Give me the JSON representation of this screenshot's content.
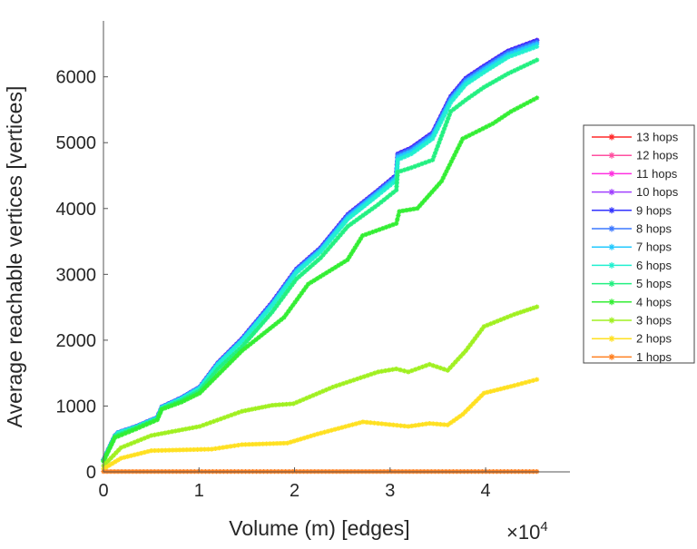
{
  "chart_data": {
    "type": "line",
    "title": "",
    "xlabel": "Volume (m) [edges]",
    "ylabel": "Average reachable vertices [vertices]",
    "x_exponent_label": "×10",
    "x_exponent": "4",
    "xlim": [
      0,
      47400
    ],
    "ylim": [
      0,
      6850
    ],
    "xticks": [
      0,
      10000,
      20000,
      30000,
      40000
    ],
    "xtick_labels": [
      "0",
      "1",
      "2",
      "3",
      "4"
    ],
    "yticks": [
      0,
      1000,
      2000,
      3000,
      4000,
      5000,
      6000
    ],
    "ytick_labels": [
      "0",
      "1000",
      "2000",
      "3000",
      "4000",
      "5000",
      "6000"
    ],
    "grid": false,
    "legend_position": "outside-right",
    "series": [
      {
        "name": "13 hops",
        "color": "#ff2a2a",
        "x": [
          0,
          1200,
          1520,
          3400,
          5630,
          6110,
          8170,
          10070,
          11970,
          14500,
          17670,
          20200,
          22730,
          25580,
          28750,
          30650,
          30800,
          32230,
          34450,
          36350,
          37930,
          39830,
          42360,
          45370
        ],
        "y": [
          184,
          552,
          598,
          690,
          828,
          989,
          1127,
          1288,
          1656,
          2024,
          2576,
          3082,
          3404,
          3910,
          4278,
          4508,
          4830,
          4922,
          5152,
          5704,
          5980,
          6164,
          6394,
          6555
        ]
      },
      {
        "name": "12 hops",
        "color": "#ff4fa0",
        "x": [
          0,
          1200,
          1520,
          3400,
          5630,
          6110,
          8170,
          10070,
          11970,
          14500,
          17670,
          20200,
          22730,
          25580,
          28750,
          30650,
          30800,
          32230,
          34450,
          36350,
          37930,
          39830,
          42360,
          45370
        ],
        "y": [
          184,
          552,
          598,
          690,
          828,
          989,
          1127,
          1288,
          1656,
          2024,
          2576,
          3082,
          3404,
          3910,
          4278,
          4508,
          4830,
          4922,
          5152,
          5704,
          5980,
          6164,
          6394,
          6555
        ]
      },
      {
        "name": "11 hops",
        "color": "#ff30e0",
        "x": [
          0,
          1200,
          1520,
          3400,
          5630,
          6110,
          8170,
          10070,
          11970,
          14500,
          17670,
          20200,
          22730,
          25580,
          28750,
          30650,
          30800,
          32230,
          34450,
          36350,
          37930,
          39830,
          42360,
          45370
        ],
        "y": [
          184,
          552,
          598,
          690,
          828,
          989,
          1127,
          1288,
          1656,
          2024,
          2576,
          3082,
          3404,
          3910,
          4278,
          4508,
          4830,
          4922,
          5152,
          5704,
          5980,
          6164,
          6394,
          6555
        ]
      },
      {
        "name": "10 hops",
        "color": "#a040ff",
        "x": [
          0,
          1200,
          1520,
          3400,
          5630,
          6110,
          8170,
          10070,
          11970,
          14500,
          17670,
          20200,
          22730,
          25580,
          28750,
          30650,
          30800,
          32230,
          34450,
          36350,
          37930,
          39830,
          42360,
          45370
        ],
        "y": [
          184,
          552,
          598,
          690,
          828,
          989,
          1127,
          1288,
          1656,
          2024,
          2576,
          3082,
          3404,
          3910,
          4278,
          4508,
          4830,
          4922,
          5152,
          5704,
          5980,
          6164,
          6394,
          6555
        ]
      },
      {
        "name": "9 hops",
        "color": "#3232ff",
        "x": [
          0,
          1200,
          1520,
          3400,
          5630,
          6110,
          8170,
          10070,
          11970,
          14500,
          17670,
          20200,
          22730,
          25580,
          28750,
          30650,
          30800,
          32230,
          34450,
          36350,
          37930,
          39830,
          42360,
          45370
        ],
        "y": [
          184,
          552,
          598,
          690,
          828,
          989,
          1127,
          1288,
          1656,
          2024,
          2576,
          3082,
          3404,
          3910,
          4278,
          4508,
          4830,
          4922,
          5152,
          5704,
          5980,
          6164,
          6394,
          6555
        ]
      },
      {
        "name": "8 hops",
        "color": "#3c78ff",
        "x": [
          0,
          1200,
          1520,
          3400,
          5630,
          6110,
          8170,
          10070,
          11970,
          14500,
          17670,
          20200,
          22730,
          25580,
          28750,
          30650,
          30800,
          32230,
          34450,
          36350,
          37930,
          39830,
          42360,
          45370
        ],
        "y": [
          184,
          552,
          598,
          690,
          828,
          989,
          1127,
          1288,
          1650,
          2015,
          2565,
          3070,
          3390,
          3895,
          4262,
          4490,
          4810,
          4900,
          5130,
          5680,
          5955,
          6140,
          6370,
          6530
        ]
      },
      {
        "name": "7 hops",
        "color": "#22c8ff",
        "x": [
          0,
          1200,
          1520,
          3400,
          5630,
          6110,
          8170,
          10070,
          11970,
          14500,
          17670,
          20200,
          22730,
          25580,
          28750,
          30650,
          30800,
          32230,
          34450,
          36350,
          37930,
          39830,
          42360,
          45370
        ],
        "y": [
          180,
          550,
          595,
          686,
          822,
          982,
          1118,
          1278,
          1640,
          2000,
          2545,
          3050,
          3370,
          3870,
          4240,
          4465,
          4780,
          4870,
          5100,
          5650,
          5925,
          6110,
          6340,
          6500
        ]
      },
      {
        "name": "6 hops",
        "color": "#22f0d0",
        "x": [
          0,
          1200,
          1520,
          3400,
          5630,
          6110,
          8170,
          10070,
          11970,
          14500,
          17670,
          20200,
          22730,
          25580,
          28750,
          30650,
          30800,
          32230,
          34450,
          36350,
          37930,
          39830,
          42360,
          45370
        ],
        "y": [
          176,
          546,
          590,
          680,
          815,
          975,
          1108,
          1265,
          1625,
          1985,
          2525,
          3025,
          3345,
          3840,
          4205,
          4430,
          4740,
          4830,
          5060,
          5610,
          5885,
          6070,
          6300,
          6460
        ]
      },
      {
        "name": "5 hops",
        "color": "#22f080",
        "x": [
          0,
          1200,
          3400,
          5630,
          6110,
          8170,
          10070,
          11970,
          14500,
          17670,
          20200,
          22730,
          25580,
          28750,
          30650,
          30800,
          32230,
          34450,
          36350,
          37930,
          39830,
          42360,
          45370
        ],
        "y": [
          170,
          540,
          670,
          800,
          960,
          1085,
          1230,
          1560,
          1900,
          2430,
          2930,
          3250,
          3730,
          4060,
          4280,
          4554,
          4620,
          4738,
          5474,
          5650,
          5842,
          6050,
          6256
        ]
      },
      {
        "name": "4 hops",
        "color": "#33ee33",
        "x": [
          0,
          1200,
          3400,
          5630,
          6110,
          8170,
          10070,
          14500,
          18900,
          21430,
          25540,
          27120,
          30650,
          30970,
          32860,
          35390,
          37600,
          40760,
          42660,
          45370
        ],
        "y": [
          160,
          520,
          650,
          790,
          950,
          1060,
          1196,
          1840,
          2346,
          2852,
          3220,
          3588,
          3772,
          3956,
          4002,
          4416,
          5060,
          5290,
          5474,
          5681
        ],
        "comment": ""
      },
      {
        "name": "3 hops",
        "color": "#a0f020",
        "x": [
          0,
          1840,
          5000,
          10070,
          14500,
          17670,
          19880,
          24000,
          28750,
          30650,
          31910,
          34130,
          36030,
          37930,
          39830,
          42990,
          45370
        ],
        "y": [
          92,
          368,
          552,
          690,
          920,
          1012,
          1035,
          1288,
          1518,
          1564,
          1518,
          1633,
          1541,
          1840,
          2208,
          2392,
          2507
        ]
      },
      {
        "name": "2 hops",
        "color": "#ffe020",
        "x": [
          0,
          1840,
          5000,
          11330,
          14500,
          19250,
          22410,
          27160,
          30330,
          31910,
          34130,
          36030,
          37610,
          39830,
          42990,
          45370
        ],
        "y": [
          46,
          207,
          322,
          345,
          414,
          437,
          575,
          759,
          713,
          690,
          736,
          713,
          874,
          1196,
          1311,
          1403
        ]
      },
      {
        "name": "1 hops",
        "color": "#ff8020",
        "x": [
          0,
          45370
        ],
        "y": [
          5,
          5
        ]
      }
    ]
  }
}
